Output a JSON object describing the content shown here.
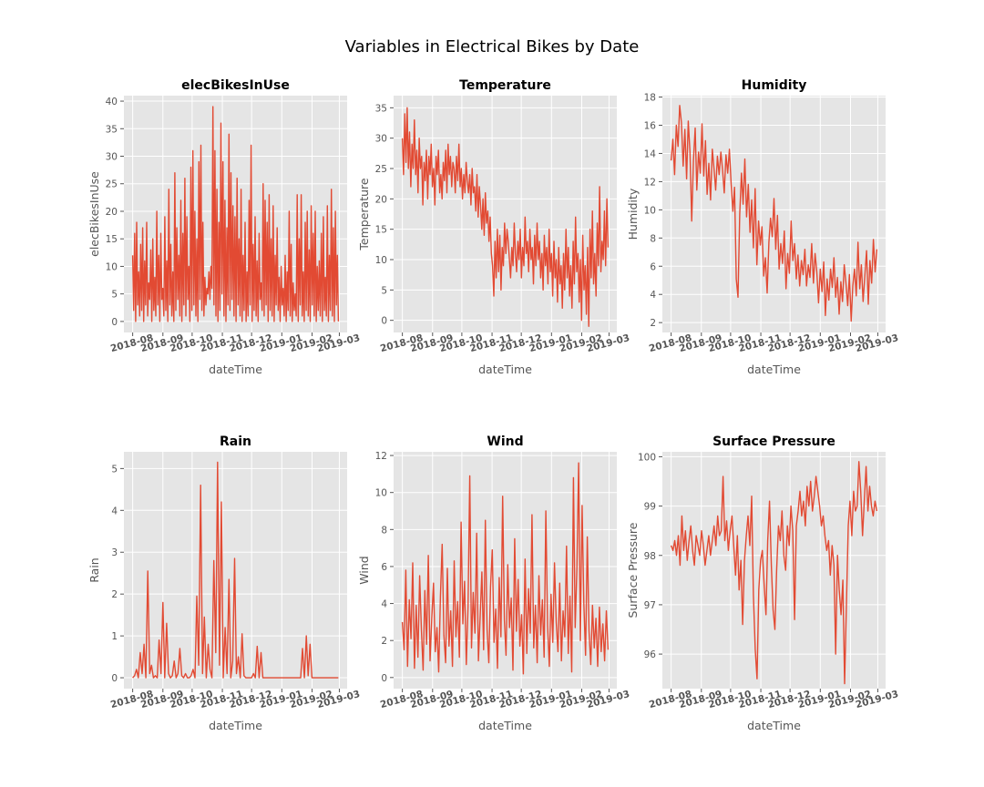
{
  "figure": {
    "title": "Variables in Electrical Bikes by Date",
    "line_color": "#E24A33",
    "axes_facecolor": "#E5E5E5",
    "grid_color": "#FFFFFF",
    "text_color": "#555555"
  },
  "chart_data": [
    {
      "type": "line",
      "title": "elecBikesInUse",
      "xlabel": "dateTime",
      "ylabel": "elecBikesInUse",
      "x_type": "date",
      "xlim": [
        "2018-07-23",
        "2019-03-09"
      ],
      "ylim": [
        -2,
        41
      ],
      "x_ticks": [
        "2018-08",
        "2018-09",
        "2018-10",
        "2018-11",
        "2018-12",
        "2019-01",
        "2019-02",
        "2019-03"
      ],
      "y_ticks": [
        0,
        5,
        10,
        15,
        20,
        25,
        30,
        35,
        40
      ],
      "grid": true,
      "series": [
        {
          "x_start": "2018-08-01",
          "x_end": "2019-02-28",
          "values": [
            12,
            2,
            16,
            0,
            18,
            3,
            9,
            1,
            14,
            2,
            17,
            0,
            11,
            3,
            18,
            1,
            7,
            4,
            13,
            0,
            15,
            2,
            8,
            1,
            20,
            3,
            12,
            0,
            16,
            4,
            6,
            1,
            19,
            2,
            11,
            0,
            24,
            3,
            14,
            1,
            9,
            0,
            27,
            2,
            17,
            4,
            12,
            1,
            22,
            0,
            16,
            3,
            26,
            1,
            19,
            4,
            10,
            0,
            28,
            2,
            31,
            3,
            20,
            1,
            15,
            0,
            29,
            4,
            32,
            2,
            18,
            1,
            8,
            3,
            6,
            5,
            9,
            4,
            10,
            6,
            39,
            3,
            31,
            1,
            24,
            0,
            18,
            2,
            36,
            5,
            29,
            1,
            22,
            0,
            17,
            3,
            34,
            2,
            27,
            4,
            21,
            1,
            19,
            0,
            26,
            3,
            15,
            1,
            24,
            0,
            12,
            2,
            18,
            0,
            9,
            1,
            22,
            3,
            32,
            0,
            14,
            2,
            19,
            1,
            11,
            0,
            16,
            4,
            7,
            2,
            25,
            1,
            22,
            3,
            18,
            0,
            23,
            2,
            15,
            1,
            21,
            0,
            12,
            3,
            17,
            2,
            8,
            0,
            10,
            3,
            6,
            1,
            12,
            0,
            9,
            2,
            20,
            1,
            14,
            0,
            7,
            2,
            5,
            1,
            23,
            0,
            15,
            3,
            23,
            1,
            9,
            0,
            18,
            2,
            20,
            1,
            13,
            0,
            21,
            3,
            16,
            1,
            20,
            0,
            10,
            2,
            11,
            1,
            16,
            0,
            19,
            2,
            8,
            1,
            21,
            0,
            12,
            2,
            24,
            1,
            17,
            0,
            20,
            3,
            12,
            0
          ]
        }
      ]
    },
    {
      "type": "line",
      "title": "Temperature",
      "xlabel": "dateTime",
      "ylabel": "Temperature",
      "x_type": "date",
      "xlim": [
        "2018-07-23",
        "2019-03-09"
      ],
      "ylim": [
        -2,
        37
      ],
      "x_ticks": [
        "2018-08",
        "2018-09",
        "2018-10",
        "2018-11",
        "2018-12",
        "2019-01",
        "2019-02",
        "2019-03"
      ],
      "y_ticks": [
        0,
        5,
        10,
        15,
        20,
        25,
        30,
        35
      ],
      "grid": true,
      "series": [
        {
          "x_start": "2018-08-01",
          "x_end": "2019-02-28",
          "values": [
            30,
            24,
            34,
            26,
            35,
            25,
            31,
            22,
            29,
            25,
            33,
            24,
            28,
            21,
            30,
            25,
            27,
            19,
            26,
            23,
            28,
            20,
            27,
            24,
            29,
            22,
            25,
            19,
            27,
            24,
            28,
            21,
            24,
            20,
            26,
            23,
            28,
            21,
            29,
            24,
            27,
            22,
            26,
            25,
            21,
            27,
            23,
            29,
            22,
            25,
            20,
            24,
            21,
            26,
            23,
            21,
            24,
            19,
            25,
            21,
            22,
            18,
            24,
            17,
            22,
            19,
            15,
            20,
            14,
            21,
            16,
            18,
            13,
            17,
            11,
            9,
            4,
            13,
            7,
            15,
            8,
            14,
            5,
            12,
            9,
            16,
            11,
            15,
            13,
            10,
            7,
            12,
            9,
            16,
            11,
            8,
            13,
            10,
            15,
            7,
            12,
            9,
            17,
            11,
            13,
            8,
            15,
            10,
            12,
            6,
            14,
            9,
            16,
            10,
            13,
            7,
            11,
            5,
            14,
            9,
            12,
            6,
            15,
            8,
            11,
            4,
            13,
            7,
            10,
            3,
            12,
            6,
            9,
            2,
            11,
            5,
            15,
            7,
            12,
            4,
            9,
            2,
            13,
            6,
            17,
            8,
            11,
            3,
            10,
            0,
            14,
            5,
            9,
            1,
            12,
            -1,
            15,
            7,
            18,
            6,
            11,
            4,
            16,
            9,
            22,
            8,
            13,
            10,
            18,
            9,
            20,
            12
          ]
        }
      ]
    },
    {
      "type": "line",
      "title": "Humidity",
      "xlabel": "dateTime",
      "ylabel": "Humidity",
      "x_type": "date",
      "xlim": [
        "2018-07-23",
        "2019-03-09"
      ],
      "ylim": [
        1.3,
        18.1
      ],
      "x_ticks": [
        "2018-08",
        "2018-09",
        "2018-10",
        "2018-11",
        "2018-12",
        "2019-01",
        "2019-02",
        "2019-03"
      ],
      "y_ticks": [
        2,
        4,
        6,
        8,
        10,
        12,
        14,
        16,
        18
      ],
      "grid": true,
      "series": [
        {
          "x_start": "2018-08-01",
          "x_end": "2019-02-28",
          "values": [
            13.5,
            15,
            12.5,
            16,
            14.5,
            17.4,
            16.2,
            13.1,
            15.7,
            12.2,
            16.3,
            14.1,
            9.2,
            13.5,
            15.8,
            11.4,
            14.1,
            12.6,
            16.1,
            12.4,
            14.9,
            11.1,
            13.3,
            10.7,
            14.3,
            12.9,
            11.4,
            13.8,
            12.5,
            14.1,
            12.8,
            11.2,
            13.9,
            12.6,
            14.3,
            11.8,
            9.9,
            11.6,
            5.1,
            3.8,
            9.7,
            12.6,
            10.4,
            13.6,
            9.5,
            11.8,
            8.4,
            10.7,
            7.3,
            11.5,
            6.1,
            9.2,
            7.5,
            8.8,
            5.3,
            6.6,
            4.1,
            7.7,
            9.4,
            8.1,
            10.8,
            7.2,
            9.6,
            5.8,
            7.6,
            6.2,
            8.5,
            4.4,
            6.9,
            5.5,
            9.2,
            6.4,
            7.6,
            5.1,
            6.8,
            4.6,
            6.4,
            5.4,
            7.2,
            4.6,
            6.1,
            5.2,
            7.6,
            4.8,
            6.9,
            5.6,
            3.4,
            5.8,
            4.2,
            6.3,
            2.5,
            5.1,
            3.6,
            5.8,
            4.5,
            6.6,
            3.8,
            5.2,
            2.6,
            4.9,
            3.5,
            6.1,
            4.8,
            3.2,
            5.4,
            2.1,
            4.6,
            5.8,
            3.9,
            7.7,
            4.4,
            6.1,
            3.5,
            5.3,
            7.1,
            3.3,
            6.4,
            4.8,
            7.9,
            5.6,
            7.2
          ]
        }
      ]
    },
    {
      "type": "line",
      "title": "Rain",
      "xlabel": "dateTime",
      "ylabel": "Rain",
      "x_type": "date",
      "xlim": [
        "2018-07-23",
        "2019-03-09"
      ],
      "ylim": [
        -0.26,
        5.4
      ],
      "x_ticks": [
        "2018-08",
        "2018-09",
        "2018-10",
        "2018-11",
        "2018-12",
        "2019-01",
        "2019-02",
        "2019-03"
      ],
      "y_ticks": [
        0,
        1,
        2,
        3,
        4,
        5
      ],
      "grid": true,
      "series": [
        {
          "x_start": "2018-08-01",
          "x_end": "2019-02-28",
          "values": [
            0,
            0.05,
            0.2,
            0,
            0.6,
            0.1,
            0.8,
            0,
            2.55,
            0.1,
            0.3,
            0,
            0.05,
            0,
            0.9,
            0.1,
            1.8,
            0,
            1.3,
            0.1,
            0,
            0.05,
            0.4,
            0,
            0.1,
            0.7,
            0.05,
            0,
            0.1,
            0,
            0,
            0.05,
            0.2,
            0,
            1.95,
            0.3,
            4.6,
            0.1,
            1.45,
            0,
            0.8,
            0.2,
            0,
            2.8,
            0.6,
            5.15,
            0.3,
            4.2,
            0,
            1.2,
            0.1,
            2.35,
            0,
            0.4,
            2.85,
            0.1,
            0.5,
            0,
            1.05,
            0.05,
            0,
            0,
            0,
            0,
            0.1,
            0,
            0.75,
            0,
            0.6,
            0,
            0,
            0,
            0,
            0,
            0,
            0,
            0,
            0,
            0,
            0,
            0,
            0,
            0,
            0,
            0,
            0,
            0,
            0,
            0,
            0,
            0.7,
            0,
            1.0,
            0.05,
            0.8,
            0,
            0,
            0,
            0,
            0,
            0,
            0,
            0,
            0,
            0,
            0,
            0,
            0,
            0,
            0
          ]
        }
      ]
    },
    {
      "type": "line",
      "title": "Wind",
      "xlabel": "dateTime",
      "ylabel": "Wind",
      "x_type": "date",
      "xlim": [
        "2018-07-23",
        "2019-03-09"
      ],
      "ylim": [
        -0.6,
        12.2
      ],
      "x_ticks": [
        "2018-08",
        "2018-09",
        "2018-10",
        "2018-11",
        "2018-12",
        "2019-01",
        "2019-02",
        "2019-03"
      ],
      "y_ticks": [
        0,
        2,
        4,
        6,
        8,
        10,
        12
      ],
      "grid": true,
      "series": [
        {
          "x_start": "2018-08-01",
          "x_end": "2019-02-28",
          "values": [
            3,
            1.5,
            5.8,
            0.6,
            4.2,
            2.1,
            6.2,
            0.5,
            3.9,
            1.1,
            5.5,
            2.6,
            0.4,
            4.7,
            1.8,
            6.6,
            0.9,
            3.2,
            5.1,
            1.4,
            2.7,
            0.3,
            4.4,
            7.2,
            2.3,
            0.8,
            5.9,
            1.7,
            3.6,
            0.6,
            6.3,
            2.2,
            4.1,
            1.1,
            8.4,
            2.9,
            5.2,
            0.7,
            3.8,
            10.9,
            1.6,
            4.6,
            2.4,
            7.8,
            0.9,
            3.3,
            5.7,
            1.5,
            8.5,
            2.6,
            0.8,
            4.9,
            6.9,
            1.9,
            3.7,
            0.5,
            5.4,
            2.2,
            9.8,
            3.1,
            1.2,
            6.1,
            2.7,
            4.3,
            0.4,
            7.5,
            2.5,
            5.3,
            1.7,
            3.4,
            0.2,
            6.4,
            1.3,
            4.8,
            2.4,
            8.8,
            1.6,
            3.9,
            0.8,
            5.5,
            2.3,
            4.2,
            1.1,
            9.0,
            2.8,
            0.6,
            4.5,
            1.9,
            6.2,
            3.0,
            1.4,
            5.1,
            0.9,
            3.6,
            2.2,
            7.1,
            1.3,
            4.4,
            0.3,
            10.8,
            2.7,
            5.9,
            11.6,
            2.0,
            9.3,
            4.0,
            1.2,
            7.6,
            2.5,
            0.7,
            3.9,
            1.6,
            3.2,
            0.6,
            3.8,
            1.4,
            2.9,
            0.9,
            3.6,
            1.5
          ]
        }
      ]
    },
    {
      "type": "line",
      "title": "Surface Pressure",
      "xlabel": "dateTime",
      "ylabel": "Surface Pressure",
      "x_type": "date",
      "xlim": [
        "2018-07-23",
        "2019-03-09"
      ],
      "ylim": [
        95.3,
        100.1
      ],
      "x_ticks": [
        "2018-08",
        "2018-09",
        "2018-10",
        "2018-11",
        "2018-12",
        "2019-01",
        "2019-02",
        "2019-03"
      ],
      "y_ticks": [
        96,
        97,
        98,
        99,
        100
      ],
      "grid": true,
      "series": [
        {
          "x_start": "2018-08-01",
          "x_end": "2019-02-28",
          "values": [
            98.2,
            98.1,
            98.3,
            98.0,
            98.4,
            97.8,
            98.8,
            98.1,
            98.5,
            97.9,
            98.3,
            98.6,
            98.1,
            97.8,
            98.4,
            98.2,
            98.0,
            98.5,
            98.2,
            97.8,
            98.1,
            98.4,
            98.0,
            98.3,
            98.6,
            98.2,
            98.8,
            98.4,
            98.5,
            99.6,
            98.3,
            98.7,
            98.1,
            98.5,
            98.8,
            98.2,
            97.6,
            98.4,
            97.3,
            97.9,
            96.6,
            97.9,
            98.4,
            98.8,
            98.2,
            99.2,
            97.2,
            96.1,
            95.5,
            97.3,
            97.9,
            98.1,
            97.4,
            96.8,
            98.3,
            99.1,
            97.8,
            96.9,
            96.5,
            97.7,
            98.6,
            98.3,
            98.9,
            98.0,
            97.7,
            98.6,
            98.2,
            99.0,
            98.5,
            96.7,
            98.6,
            98.9,
            99.3,
            98.8,
            99.1,
            98.6,
            99.4,
            99.0,
            99.5,
            98.9,
            99.2,
            99.6,
            99.3,
            99.0,
            98.6,
            98.8,
            98.4,
            98.1,
            98.3,
            97.6,
            98.2,
            97.8,
            96.0,
            98.0,
            97.3,
            96.8,
            97.5,
            95.4,
            97.0,
            98.6,
            99.1,
            98.4,
            99.3,
            98.9,
            99.0,
            99.9,
            99.3,
            98.4,
            99.1,
            99.8,
            98.9,
            99.4,
            99.0,
            98.8,
            99.1,
            98.9
          ]
        }
      ]
    }
  ]
}
